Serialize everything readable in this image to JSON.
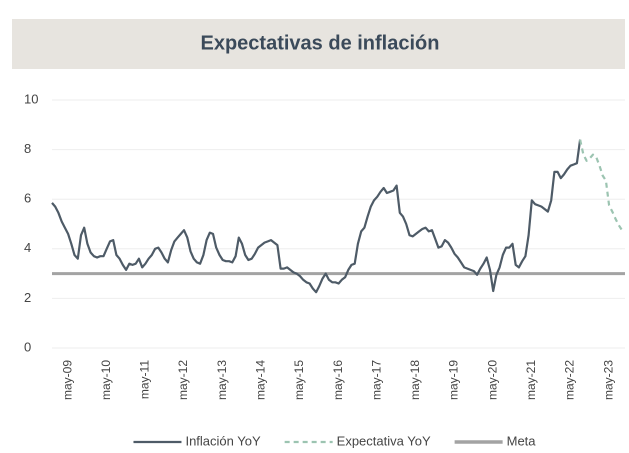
{
  "chart_data": {
    "type": "line",
    "title": "Expectativas de inflación",
    "categories": [
      null,
      null,
      null,
      null,
      null,
      "may-09",
      null,
      null,
      null,
      null,
      null,
      null,
      null,
      null,
      null,
      null,
      null,
      "may-10",
      null,
      null,
      null,
      null,
      null,
      null,
      null,
      null,
      null,
      null,
      null,
      "may-11",
      null,
      null,
      null,
      null,
      null,
      null,
      null,
      null,
      null,
      null,
      null,
      "may-12",
      null,
      null,
      null,
      null,
      null,
      null,
      null,
      null,
      null,
      null,
      null,
      "may-13",
      null,
      null,
      null,
      null,
      null,
      null,
      null,
      null,
      null,
      null,
      null,
      "may-14",
      null,
      null,
      null,
      null,
      null,
      null,
      null,
      null,
      null,
      null,
      null,
      "may-15",
      null,
      null,
      null,
      null,
      null,
      null,
      null,
      null,
      null,
      null,
      null,
      "may-16",
      null,
      null,
      null,
      null,
      null,
      null,
      null,
      null,
      null,
      null,
      null,
      "may-17",
      null,
      null,
      null,
      null,
      null,
      null,
      null,
      null,
      null,
      null,
      null,
      "may-18",
      null,
      null,
      null,
      null,
      null,
      null,
      null,
      null,
      null,
      null,
      null,
      "may-19",
      null,
      null,
      null,
      null,
      null,
      null,
      null,
      null,
      null,
      null,
      null,
      "may-20",
      null,
      null,
      null,
      null,
      null,
      null,
      null,
      null,
      null,
      null,
      null,
      "may-21",
      null,
      null,
      null,
      null,
      null,
      null,
      null,
      null,
      null,
      null,
      null,
      "may-22",
      null,
      null,
      null,
      null,
      null,
      null,
      null,
      null,
      null,
      null,
      null,
      "may-23",
      null,
      null,
      null,
      null
    ],
    "series": [
      {
        "name": "Inflación YoY",
        "color": "#4e5b67",
        "dash": false,
        "values": [
          5.85,
          5.7,
          5.45,
          5.1,
          4.85,
          4.6,
          4.2,
          3.75,
          3.6,
          4.55,
          4.85,
          4.2,
          3.85,
          3.7,
          3.65,
          3.7,
          3.7,
          4.0,
          4.3,
          4.35,
          3.75,
          3.6,
          3.35,
          3.15,
          3.4,
          3.35,
          3.4,
          3.6,
          3.25,
          3.4,
          3.6,
          3.75,
          4.0,
          4.05,
          3.85,
          3.6,
          3.45,
          3.95,
          4.3,
          4.45,
          4.6,
          4.75,
          4.45,
          3.9,
          3.6,
          3.45,
          3.4,
          3.75,
          4.35,
          4.65,
          4.6,
          4.05,
          3.75,
          3.55,
          3.5,
          3.5,
          3.45,
          3.7,
          4.45,
          4.2,
          3.75,
          3.55,
          3.6,
          3.8,
          4.05,
          4.15,
          4.25,
          4.3,
          4.35,
          4.25,
          4.15,
          3.2,
          3.2,
          3.25,
          3.15,
          3.05,
          3.0,
          2.9,
          2.75,
          2.65,
          2.6,
          2.4,
          2.25,
          2.5,
          2.8,
          3.0,
          2.75,
          2.65,
          2.65,
          2.6,
          2.75,
          2.85,
          3.15,
          3.35,
          3.4,
          4.2,
          4.7,
          4.85,
          5.3,
          5.7,
          5.95,
          6.1,
          6.3,
          6.45,
          6.25,
          6.3,
          6.35,
          6.55,
          5.45,
          5.3,
          5.0,
          4.55,
          4.5,
          4.6,
          4.7,
          4.8,
          4.85,
          4.7,
          4.75,
          4.4,
          4.05,
          4.1,
          4.35,
          4.25,
          4.05,
          3.8,
          3.65,
          3.45,
          3.25,
          3.2,
          3.15,
          3.1,
          2.95,
          3.2,
          3.4,
          3.65,
          3.15,
          2.3,
          2.95,
          3.25,
          3.75,
          4.05,
          4.05,
          4.2,
          3.35,
          3.25,
          3.5,
          3.7,
          4.55,
          5.95,
          5.8,
          5.75,
          5.7,
          5.6,
          5.5,
          5.95,
          7.1,
          7.1,
          6.85,
          7.0,
          7.2,
          7.35,
          7.4,
          7.45,
          8.4,
          null,
          null,
          null,
          null,
          null,
          null,
          null,
          null,
          null,
          null,
          null,
          null,
          null
        ]
      },
      {
        "name": "Expectativa YoY",
        "color": "#9cc4b1",
        "dash": true,
        "values": [
          null,
          null,
          null,
          null,
          null,
          null,
          null,
          null,
          null,
          null,
          null,
          null,
          null,
          null,
          null,
          null,
          null,
          null,
          null,
          null,
          null,
          null,
          null,
          null,
          null,
          null,
          null,
          null,
          null,
          null,
          null,
          null,
          null,
          null,
          null,
          null,
          null,
          null,
          null,
          null,
          null,
          null,
          null,
          null,
          null,
          null,
          null,
          null,
          null,
          null,
          null,
          null,
          null,
          null,
          null,
          null,
          null,
          null,
          null,
          null,
          null,
          null,
          null,
          null,
          null,
          null,
          null,
          null,
          null,
          null,
          null,
          null,
          null,
          null,
          null,
          null,
          null,
          null,
          null,
          null,
          null,
          null,
          null,
          null,
          null,
          null,
          null,
          null,
          null,
          null,
          null,
          null,
          null,
          null,
          null,
          null,
          null,
          null,
          null,
          null,
          null,
          null,
          null,
          null,
          null,
          null,
          null,
          null,
          null,
          null,
          null,
          null,
          null,
          null,
          null,
          null,
          null,
          null,
          null,
          null,
          null,
          null,
          null,
          null,
          null,
          null,
          null,
          null,
          null,
          null,
          null,
          null,
          null,
          null,
          null,
          null,
          null,
          null,
          null,
          null,
          null,
          null,
          null,
          null,
          null,
          null,
          null,
          null,
          null,
          null,
          null,
          null,
          null,
          null,
          null,
          null,
          null,
          null,
          null,
          null,
          null,
          null,
          null,
          null,
          8.4,
          7.8,
          7.55,
          7.65,
          7.8,
          7.7,
          7.35,
          6.95,
          6.75,
          5.75,
          5.5,
          5.2,
          4.95,
          4.75
        ]
      }
    ],
    "reference_lines": [
      {
        "name": "Meta",
        "value": 3,
        "color": "#a3a3a3"
      }
    ],
    "ylim": [
      0,
      10
    ],
    "yticks": [
      0,
      2,
      4,
      6,
      8,
      10
    ],
    "grid": true,
    "legend": "bottom"
  }
}
